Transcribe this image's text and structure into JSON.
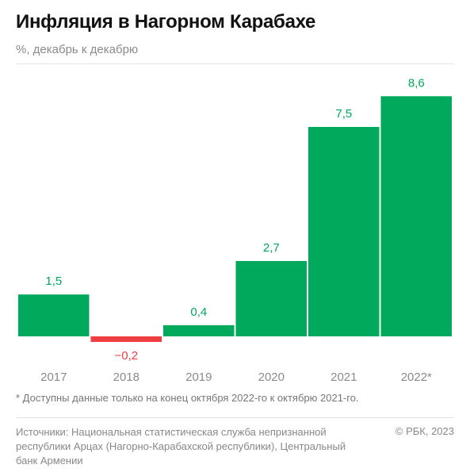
{
  "header": {
    "title": "Инфляция в Нагорном Карабахе",
    "subtitle": "%, декабрь к декабрю"
  },
  "footer": {
    "footnote": "* Доступны данные только на конец октября 2022-го к октябрю 2021-го.",
    "sources": "Источники: Национальная статистическая служба непризнанной республики Арцах (Нагорно-Карабахской республики), Центральный банк Армении",
    "copyright": "© РБК, 2023"
  },
  "colors": {
    "positive": "#00a95c",
    "negative": "#ef3e42",
    "axis_text": "#8a8a8a"
  },
  "chart_data": {
    "type": "bar",
    "title": "Инфляция в Нагорном Карабахе",
    "subtitle": "%, декабрь к декабрю",
    "xlabel": "",
    "ylabel": "",
    "categories": [
      "2017",
      "2018",
      "2019",
      "2020",
      "2021",
      "2022*"
    ],
    "values": [
      1.5,
      -0.2,
      0.4,
      2.7,
      7.5,
      8.6
    ],
    "value_labels": [
      "1,5",
      "−0,2",
      "0,4",
      "2,7",
      "7,5",
      "8,6"
    ],
    "ylim": [
      -0.5,
      8.6
    ],
    "grid": false,
    "legend": "none"
  }
}
